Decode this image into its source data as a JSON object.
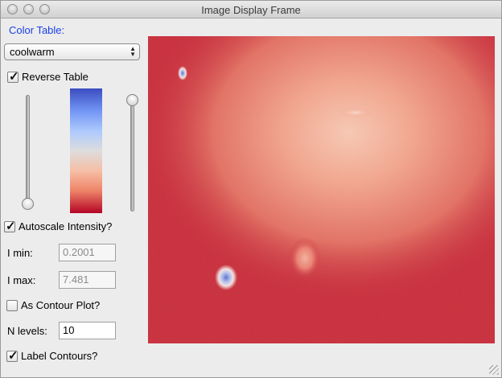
{
  "window": {
    "title": "Image Display Frame"
  },
  "color_table": {
    "label": "Color Table:",
    "selected": "coolwarm",
    "reverse_label": "Reverse Table",
    "reverse_checked": true,
    "colors": {
      "low": "#3b4cc0",
      "mid": "#dddddd",
      "high": "#b40426"
    }
  },
  "sliders": {
    "left": {
      "level": 0.0
    },
    "right": {
      "level": 1.0
    }
  },
  "autoscale": {
    "label": "Autoscale Intensity?",
    "checked": true
  },
  "i_min": {
    "label": "I min:",
    "value": "0.2001"
  },
  "i_max": {
    "label": "I max:",
    "value": "7.481"
  },
  "contour": {
    "label": "As Contour Plot?",
    "checked": false
  },
  "n_levels": {
    "label": "N levels:",
    "value": "10"
  },
  "label_contours": {
    "label": "Label Contours?",
    "checked": true
  }
}
